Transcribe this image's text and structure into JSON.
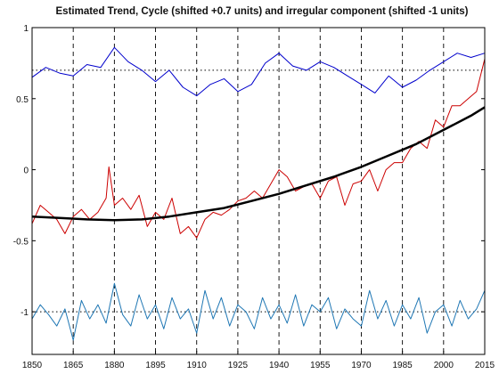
{
  "chart_data": {
    "type": "line",
    "title": "Estimated Trend, Cycle (shifted +0.7 units) and irregular component (shifted -1 units)",
    "xlabel": "",
    "ylabel": "",
    "xlim": [
      1850,
      2015
    ],
    "ylim": [
      -1.3,
      1.0
    ],
    "xticks": [
      1850,
      1865,
      1880,
      1895,
      1910,
      1925,
      1940,
      1955,
      1970,
      1985,
      2000,
      2015
    ],
    "xtick_labels": [
      "1850",
      "1865",
      "1880",
      "1895",
      "1910",
      "1925",
      "1940",
      "1955",
      "1970",
      "1985",
      "2000",
      "2015"
    ],
    "yticks": [
      -1,
      -0.5,
      0,
      0.5,
      1
    ],
    "ytick_labels": [
      "-1",
      "-0.5",
      "0",
      "0.5",
      "1"
    ],
    "grid": "dashed vertical lines at x ticks",
    "reference_lines": [
      {
        "y": 0.7,
        "style": "dotted",
        "color": "#000000"
      },
      {
        "y": -1.0,
        "style": "dotted",
        "color": "#000000"
      }
    ],
    "series": [
      {
        "color": "#cc0000",
        "width": 1,
        "x": [
          1850,
          1853,
          1856,
          1859,
          1862,
          1865,
          1868,
          1871,
          1874,
          1877,
          1878,
          1880,
          1883,
          1886,
          1889,
          1892,
          1895,
          1898,
          1901,
          1904,
          1907,
          1910,
          1913,
          1916,
          1919,
          1922,
          1925,
          1928,
          1931,
          1934,
          1937,
          1940,
          1943,
          1946,
          1949,
          1952,
          1955,
          1958,
          1961,
          1964,
          1967,
          1970,
          1973,
          1976,
          1979,
          1982,
          1985,
          1988,
          1991,
          1994,
          1997,
          2000,
          2003,
          2006,
          2009,
          2012,
          2015
        ],
        "y": [
          -0.38,
          -0.25,
          -0.3,
          -0.35,
          -0.45,
          -0.33,
          -0.28,
          -0.35,
          -0.3,
          -0.2,
          0.02,
          -0.25,
          -0.2,
          -0.28,
          -0.18,
          -0.4,
          -0.3,
          -0.35,
          -0.2,
          -0.45,
          -0.4,
          -0.48,
          -0.35,
          -0.3,
          -0.32,
          -0.28,
          -0.22,
          -0.2,
          -0.15,
          -0.2,
          -0.1,
          0.0,
          -0.05,
          -0.15,
          -0.12,
          -0.1,
          -0.2,
          -0.08,
          -0.05,
          -0.25,
          -0.1,
          -0.08,
          0.0,
          -0.15,
          0.0,
          0.05,
          0.05,
          0.15,
          0.2,
          0.15,
          0.35,
          0.3,
          0.45,
          0.45,
          0.5,
          0.55,
          0.78
        ]
      },
      {
        "color": "#000000",
        "width": 2.5,
        "x": [
          1850,
          1860,
          1870,
          1880,
          1890,
          1900,
          1910,
          1920,
          1930,
          1940,
          1950,
          1960,
          1970,
          1980,
          1990,
          2000,
          2010,
          2015
        ],
        "y": [
          -0.33,
          -0.34,
          -0.35,
          -0.355,
          -0.35,
          -0.33,
          -0.3,
          -0.27,
          -0.22,
          -0.17,
          -0.11,
          -0.05,
          0.02,
          0.1,
          0.18,
          0.28,
          0.38,
          0.44
        ]
      },
      {
        "color": "#0000cc",
        "width": 1,
        "x": [
          1850,
          1855,
          1860,
          1865,
          1870,
          1875,
          1880,
          1885,
          1890,
          1895,
          1900,
          1905,
          1910,
          1915,
          1920,
          1925,
          1930,
          1935,
          1940,
          1945,
          1950,
          1955,
          1960,
          1965,
          1970,
          1975,
          1980,
          1985,
          1990,
          1995,
          2000,
          2005,
          2010,
          2015
        ],
        "y": [
          0.65,
          0.72,
          0.68,
          0.66,
          0.74,
          0.72,
          0.86,
          0.76,
          0.7,
          0.62,
          0.7,
          0.58,
          0.52,
          0.6,
          0.64,
          0.55,
          0.6,
          0.75,
          0.82,
          0.73,
          0.7,
          0.76,
          0.72,
          0.66,
          0.6,
          0.54,
          0.66,
          0.58,
          0.63,
          0.7,
          0.76,
          0.82,
          0.79,
          0.82
        ]
      },
      {
        "color": "#1f77b4",
        "width": 1,
        "x": [
          1850,
          1853,
          1856,
          1859,
          1862,
          1865,
          1868,
          1871,
          1874,
          1877,
          1880,
          1883,
          1886,
          1889,
          1892,
          1895,
          1898,
          1901,
          1904,
          1907,
          1910,
          1913,
          1916,
          1919,
          1922,
          1925,
          1928,
          1931,
          1934,
          1937,
          1940,
          1943,
          1946,
          1949,
          1952,
          1955,
          1958,
          1961,
          1964,
          1967,
          1970,
          1973,
          1976,
          1979,
          1982,
          1985,
          1988,
          1991,
          1994,
          1997,
          2000,
          2003,
          2006,
          2009,
          2012,
          2015
        ],
        "y": [
          -1.05,
          -0.95,
          -1.02,
          -1.1,
          -0.98,
          -1.2,
          -0.92,
          -1.05,
          -0.95,
          -1.08,
          -0.8,
          -1.02,
          -1.1,
          -0.88,
          -1.05,
          -0.95,
          -1.12,
          -0.9,
          -1.05,
          -0.98,
          -1.15,
          -0.85,
          -1.05,
          -0.9,
          -1.1,
          -0.95,
          -1.0,
          -1.12,
          -0.9,
          -1.05,
          -0.95,
          -1.08,
          -0.88,
          -1.1,
          -0.95,
          -1.0,
          -0.9,
          -1.12,
          -0.98,
          -1.05,
          -1.1,
          -0.85,
          -1.05,
          -0.92,
          -1.1,
          -0.95,
          -1.05,
          -0.9,
          -1.15,
          -1.0,
          -0.95,
          -1.1,
          -0.92,
          -1.05,
          -0.98,
          -0.85
        ]
      }
    ]
  }
}
